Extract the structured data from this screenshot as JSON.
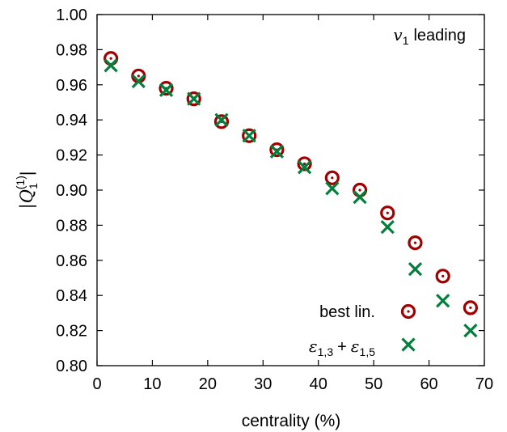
{
  "chart_data": {
    "type": "scatter",
    "annotation": {
      "symbol": "v",
      "sub": "1",
      "text": "leading"
    },
    "xlabel": "centrality (%)",
    "ylabel": {
      "base": "|Q",
      "sub": "1",
      "sup": "(1)",
      "close": "|"
    },
    "xlim": [
      0,
      70
    ],
    "ylim": [
      0.8,
      1.0
    ],
    "xticks": [
      0,
      10,
      20,
      30,
      40,
      50,
      60,
      70
    ],
    "yticks": [
      0.8,
      0.82,
      0.84,
      0.86,
      0.88,
      0.9,
      0.92,
      0.94,
      0.96,
      0.98,
      1.0
    ],
    "xtick_labels": [
      "0",
      "10",
      "20",
      "30",
      "40",
      "50",
      "60",
      "70"
    ],
    "ytick_labels": [
      "0.80",
      "0.82",
      "0.84",
      "0.86",
      "0.88",
      "0.90",
      "0.92",
      "0.94",
      "0.96",
      "0.98",
      "1.00"
    ],
    "grid": false,
    "legend_position": "bottom-right",
    "legend_labels": {
      "best_lin": "best lin.",
      "eps_sym": "ε",
      "eps1_sub": "1,3",
      "plus": "+",
      "eps2_sub": "1,5"
    },
    "series": [
      {
        "name": "best lin.",
        "marker": "circle-dot",
        "color": "#a00000",
        "x": [
          2.5,
          7.5,
          12.5,
          17.5,
          22.5,
          27.5,
          32.5,
          37.5,
          42.5,
          47.5,
          52.5,
          57.5,
          62.5,
          67.5
        ],
        "y": [
          0.975,
          0.965,
          0.958,
          0.952,
          0.939,
          0.931,
          0.923,
          0.915,
          0.907,
          0.9,
          0.887,
          0.87,
          0.851,
          0.833
        ]
      },
      {
        "name": "ε1,3 + ε1,5",
        "marker": "x",
        "color": "#00803a",
        "x": [
          2.5,
          7.5,
          12.5,
          17.5,
          22.5,
          27.5,
          32.5,
          37.5,
          42.5,
          47.5,
          52.5,
          57.5,
          62.5,
          67.5
        ],
        "y": [
          0.971,
          0.962,
          0.957,
          0.952,
          0.94,
          0.931,
          0.922,
          0.913,
          0.901,
          0.896,
          0.879,
          0.855,
          0.837,
          0.82
        ]
      }
    ]
  }
}
